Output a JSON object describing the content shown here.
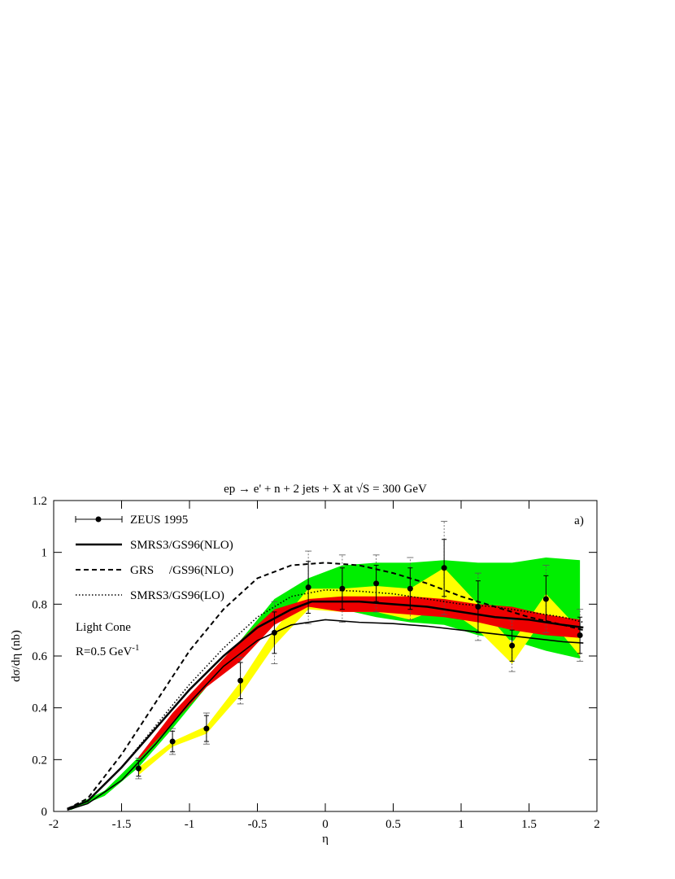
{
  "chart_data": {
    "type": "line",
    "title": "ep → e' + n + 2 jets + X at √S = 300 GeV",
    "x_label": "η",
    "y_label": "dσ/dη (nb)",
    "xlim": [
      -2,
      2
    ],
    "ylim": [
      0,
      1.2
    ],
    "xticks": [
      -2,
      -1.5,
      -1,
      -0.5,
      0,
      0.5,
      1,
      1.5,
      2
    ],
    "yticks": [
      0,
      0.2,
      0.4,
      0.6,
      0.8,
      1,
      1.2
    ],
    "annotations": [
      "a)",
      "Light Cone",
      "R=0.5 GeV",
      "-1"
    ],
    "bands": [
      {
        "color": "#00ee00",
        "x": [
          -1.875,
          -1.625,
          -1.375,
          -1.125,
          -0.875,
          -0.625,
          -0.375,
          -0.125,
          0.125,
          0.375,
          0.625,
          0.875,
          1.125,
          1.375,
          1.625,
          1.875
        ],
        "lower": [
          0.005,
          0.06,
          0.17,
          0.32,
          0.48,
          0.62,
          0.72,
          0.8,
          0.78,
          0.75,
          0.73,
          0.72,
          0.68,
          0.66,
          0.62,
          0.59
        ],
        "upper": [
          0.015,
          0.08,
          0.21,
          0.37,
          0.52,
          0.66,
          0.82,
          0.9,
          0.95,
          0.96,
          0.96,
          0.97,
          0.96,
          0.96,
          0.98,
          0.97
        ]
      },
      {
        "color": "#ffff00",
        "x": [
          -1.375,
          -1.125,
          -0.875,
          -0.625,
          -0.375,
          -0.125,
          0.125,
          0.375,
          0.625,
          0.875,
          1.125,
          1.375,
          1.625,
          1.875
        ],
        "lower": [
          0.14,
          0.25,
          0.3,
          0.45,
          0.64,
          0.78,
          0.77,
          0.77,
          0.74,
          0.79,
          0.7,
          0.57,
          0.76,
          0.6
        ],
        "upper": [
          0.17,
          0.27,
          0.33,
          0.5,
          0.7,
          0.86,
          0.86,
          0.87,
          0.86,
          0.94,
          0.8,
          0.65,
          0.84,
          0.7
        ]
      },
      {
        "color": "#ee0000",
        "x": [
          -1.375,
          -1.125,
          -0.875,
          -0.625,
          -0.375,
          -0.125,
          0.125,
          0.375,
          0.625,
          0.875,
          1.125,
          1.375,
          1.625,
          1.875
        ],
        "lower": [
          0.2,
          0.34,
          0.48,
          0.58,
          0.72,
          0.79,
          0.77,
          0.77,
          0.76,
          0.75,
          0.73,
          0.7,
          0.68,
          0.67
        ],
        "upper": [
          0.21,
          0.38,
          0.52,
          0.66,
          0.78,
          0.82,
          0.83,
          0.83,
          0.83,
          0.82,
          0.8,
          0.79,
          0.76,
          0.74
        ]
      }
    ],
    "series": [
      {
        "name": "ZEUS 1995",
        "color": "#000000",
        "style": "points",
        "x": [
          -1.375,
          -1.125,
          -0.875,
          -0.625,
          -0.375,
          -0.125,
          0.125,
          0.375,
          0.625,
          0.875,
          1.125,
          1.375,
          1.625,
          1.875
        ],
        "values": [
          0.166,
          0.27,
          0.32,
          0.505,
          0.69,
          0.865,
          0.86,
          0.88,
          0.86,
          0.94,
          0.79,
          0.64,
          0.82,
          0.68
        ],
        "errors": [
          0.03,
          0.04,
          0.05,
          0.07,
          0.08,
          0.1,
          0.08,
          0.07,
          0.08,
          0.11,
          0.1,
          0.06,
          0.09,
          0.07
        ],
        "errors_total": [
          0.04,
          0.05,
          0.06,
          0.09,
          0.12,
          0.14,
          0.13,
          0.11,
          0.12,
          0.18,
          0.13,
          0.1,
          0.13,
          0.1
        ]
      },
      {
        "name": "SMRS3/GS96(NLO)",
        "color": "#000000",
        "style": "solid",
        "x": [
          -1.9,
          -1.75,
          -1.5,
          -1.25,
          -1,
          -0.75,
          -0.5,
          -0.25,
          -0.1,
          0,
          0.25,
          0.5,
          0.75,
          1,
          1.25,
          1.5,
          1.75,
          1.9
        ],
        "values": [
          0.01,
          0.04,
          0.17,
          0.32,
          0.47,
          0.6,
          0.71,
          0.78,
          0.81,
          0.81,
          0.81,
          0.8,
          0.79,
          0.77,
          0.75,
          0.74,
          0.72,
          0.71
        ]
      },
      {
        "name": "GRS     /GS96(NLO)",
        "color": "#000000",
        "style": "dashed",
        "x": [
          -1.9,
          -1.75,
          -1.5,
          -1.25,
          -1,
          -0.75,
          -0.5,
          -0.25,
          0,
          0.25,
          0.5,
          0.75,
          1,
          1.25,
          1.5,
          1.75,
          1.9
        ],
        "values": [
          0.01,
          0.05,
          0.22,
          0.42,
          0.62,
          0.78,
          0.9,
          0.95,
          0.96,
          0.95,
          0.92,
          0.88,
          0.83,
          0.79,
          0.75,
          0.72,
          0.7
        ]
      },
      {
        "name": "SMRS3/GS96(LO)",
        "color": "#000000",
        "style": "dotted",
        "x": [
          -1.9,
          -1.75,
          -1.5,
          -1.25,
          -1,
          -0.75,
          -0.5,
          -0.25,
          0,
          0.25,
          0.5,
          0.75,
          1,
          1.25,
          1.5,
          1.75,
          1.9
        ],
        "values": [
          0.01,
          0.04,
          0.17,
          0.33,
          0.49,
          0.63,
          0.75,
          0.83,
          0.855,
          0.85,
          0.84,
          0.82,
          0.8,
          0.79,
          0.77,
          0.75,
          0.73
        ]
      },
      {
        "color": "#000000",
        "style": "thin",
        "x": [
          -1.9,
          -1.75,
          -1.5,
          -1.25,
          -1,
          -0.75,
          -0.5,
          -0.25,
          0,
          0.25,
          0.5,
          0.75,
          1,
          1.25,
          1.5,
          1.75,
          1.9
        ],
        "values": [
          0.005,
          0.03,
          0.12,
          0.26,
          0.42,
          0.56,
          0.66,
          0.72,
          0.74,
          0.73,
          0.725,
          0.715,
          0.7,
          0.685,
          0.67,
          0.655,
          0.65
        ]
      }
    ]
  }
}
